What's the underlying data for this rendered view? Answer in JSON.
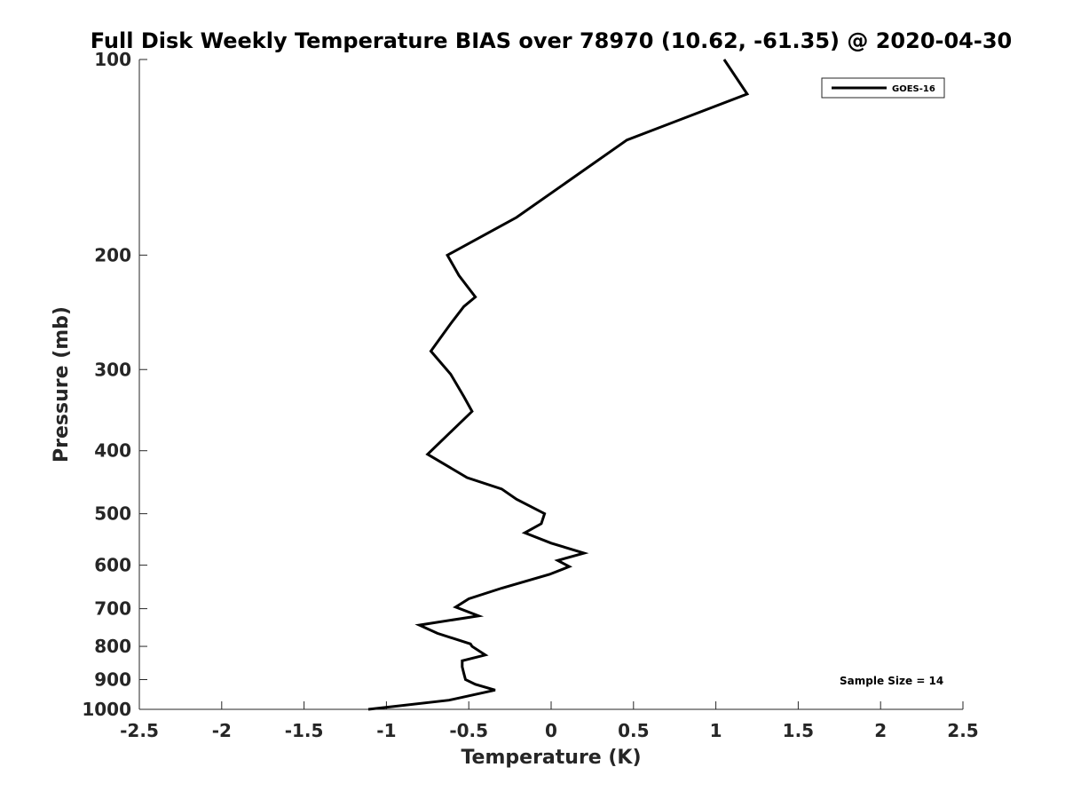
{
  "chart_data": {
    "type": "line",
    "title": "Full Disk Weekly Temperature BIAS over 78970 (10.62, -61.35) @ 2020-04-30",
    "xlabel": "Temperature (K)",
    "ylabel": "Pressure (mb)",
    "xlim": [
      -2.5,
      2.5
    ],
    "ylim": [
      100,
      1000
    ],
    "y_scale": "log",
    "y_reversed": true,
    "x_ticks": [
      "-2.5",
      "-2",
      "-1.5",
      "-1",
      "-0.5",
      "0",
      "0.5",
      "1",
      "1.5",
      "2",
      "2.5"
    ],
    "y_ticks": [
      "100",
      "200",
      "300",
      "400",
      "500",
      "600",
      "700",
      "800",
      "900",
      "1000"
    ],
    "grid": false,
    "legend_position": "top-right",
    "annotation": "Sample Size = 14",
    "series": [
      {
        "name": "GOES-16",
        "color": "#000000",
        "x": [
          1.05,
          1.19,
          0.46,
          -0.21,
          -0.63,
          -0.56,
          -0.46,
          -0.53,
          -0.61,
          -0.73,
          -0.61,
          -0.53,
          -0.48,
          -0.75,
          -0.51,
          -0.3,
          -0.21,
          -0.04,
          -0.06,
          -0.16,
          0.0,
          0.2,
          0.04,
          0.11,
          -0.01,
          -0.3,
          -0.5,
          -0.58,
          -0.44,
          -0.8,
          -0.69,
          -0.49,
          -0.48,
          -0.4,
          -0.54,
          -0.54,
          -0.53,
          -0.52,
          -0.46,
          -0.34,
          -0.62,
          -1.11
        ],
        "y": [
          100,
          113,
          133,
          175,
          200,
          215,
          232,
          240,
          255,
          281,
          305,
          330,
          348,
          405,
          440,
          458,
          475,
          500,
          518,
          535,
          555,
          575,
          590,
          603,
          620,
          651,
          676,
          696,
          718,
          742,
          764,
          793,
          800,
          825,
          842,
          860,
          880,
          900,
          915,
          934,
          968,
          1000
        ]
      }
    ]
  }
}
